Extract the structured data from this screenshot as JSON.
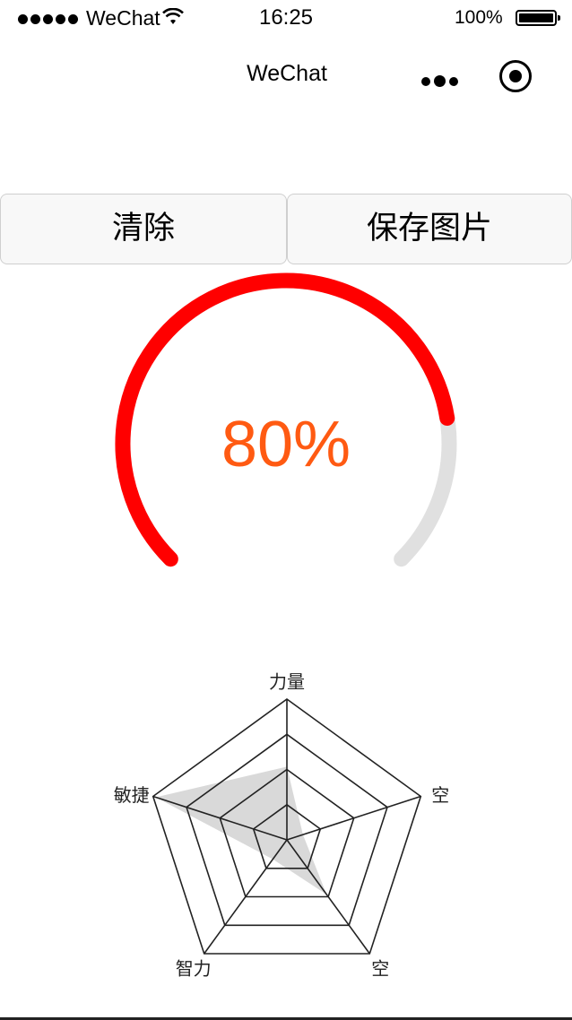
{
  "status_bar": {
    "carrier": "WeChat",
    "time": "16:25",
    "battery": "100%",
    "icons": [
      "signal-dots-icon",
      "wifi-icon",
      "battery-icon"
    ]
  },
  "nav": {
    "title": "WeChat",
    "icons": [
      "more-icon",
      "close-target-icon"
    ]
  },
  "buttons": {
    "clear_label": "清除",
    "save_label": "保存图片"
  },
  "gauge": {
    "value_label": "80%",
    "progress": 0.8,
    "colors": {
      "progress": "#ff0000",
      "track": "#e0e0e0",
      "text": "#ff5a12"
    }
  },
  "radar": {
    "labels": [
      "力量",
      "空",
      "空",
      "智力",
      "敏捷"
    ],
    "values": [
      0.52,
      0.12,
      0.48,
      0.17,
      0.98
    ],
    "levels": 4,
    "colors": {
      "fill": "#d9d9d9",
      "line": "#222222"
    }
  }
}
